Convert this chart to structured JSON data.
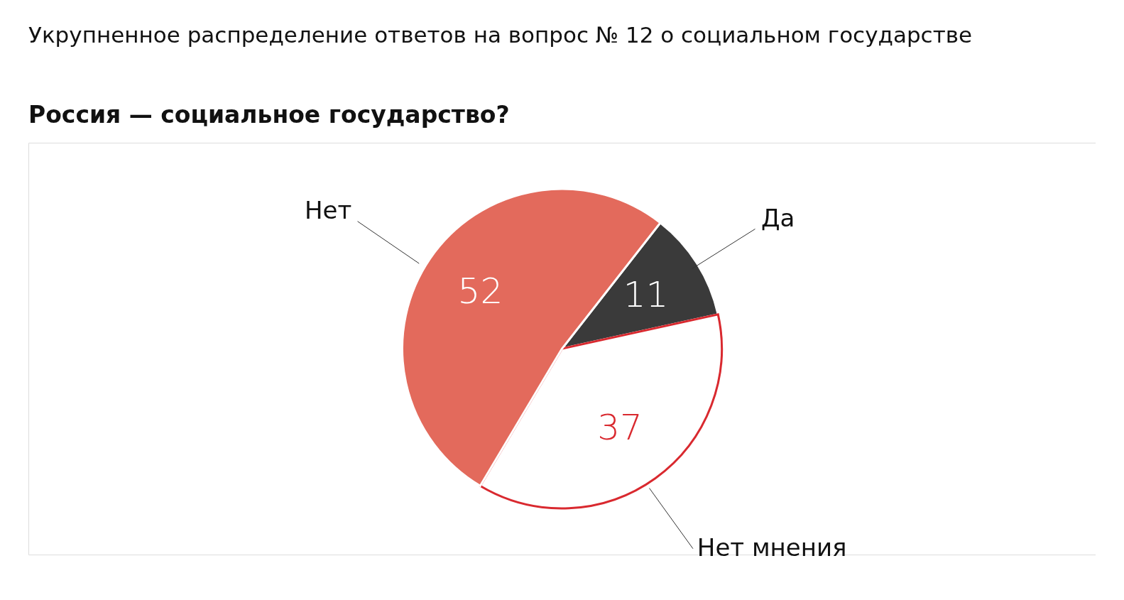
{
  "chart_data": {
    "type": "pie",
    "title": "Укрупненное распределение ответов на вопрос № 12 о социальном государстве",
    "subtitle": "Россия — социальное государство?",
    "categories": [
      "Да",
      "Нет мнения",
      "Нет"
    ],
    "values": [
      11,
      37,
      52
    ],
    "colors": [
      "#3a3a3a",
      "#ffffff",
      "#e36a5c"
    ],
    "data_labels": true
  }
}
